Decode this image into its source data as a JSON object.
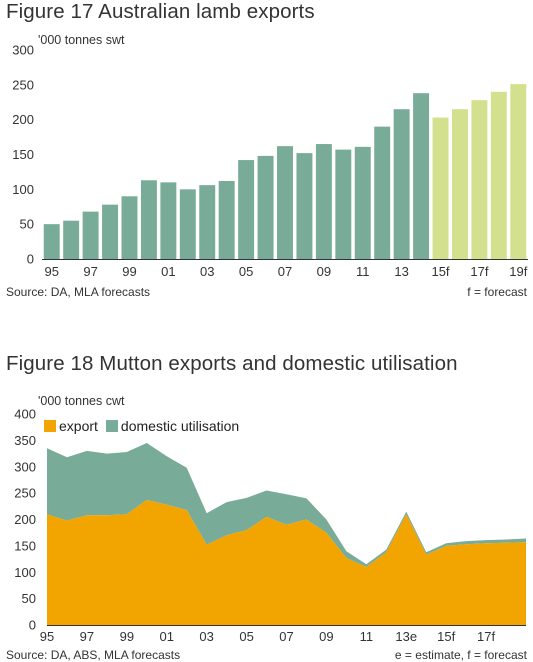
{
  "figures": {
    "fig1": {
      "title": "Figure 17 Australian lamb exports",
      "unit_label": "'000 tonnes swt",
      "source": "Source: DA, MLA forecasts",
      "note": "f = forecast"
    },
    "fig2": {
      "title": "Figure 18 Mutton exports and domestic utilisation",
      "unit_label": "'000 tonnes cwt",
      "source": "Source: DA, ABS, MLA forecasts",
      "note": "e = estimate, f = forecast"
    }
  },
  "chart_data": [
    {
      "type": "bar",
      "title": "Figure 17 Australian lamb exports",
      "ylabel": "'000 tonnes swt",
      "ylim": [
        0,
        300
      ],
      "yticks": [
        0,
        50,
        100,
        150,
        200,
        250,
        300
      ],
      "grid": false,
      "categories": [
        "1995",
        "1996",
        "1997",
        "1998",
        "1999",
        "2000",
        "2001",
        "2002",
        "2003",
        "2004",
        "2005",
        "2006",
        "2007",
        "2008",
        "2009",
        "2010",
        "2011",
        "2012",
        "2013",
        "2014",
        "2015f",
        "2016f",
        "2017f",
        "2018f",
        "2019f"
      ],
      "xtick_labels": [
        "95",
        "",
        "97",
        "",
        "99",
        "",
        "01",
        "",
        "03",
        "",
        "05",
        "",
        "07",
        "",
        "09",
        "",
        "11",
        "",
        "13",
        "",
        "15f",
        "",
        "17f",
        "",
        "19f"
      ],
      "values": [
        50,
        55,
        68,
        78,
        90,
        113,
        110,
        100,
        106,
        112,
        142,
        148,
        162,
        152,
        165,
        157,
        161,
        190,
        215,
        238,
        203,
        215,
        228,
        240,
        251
      ],
      "forecast_from_index": 20,
      "colors": {
        "actual": "#78AB98",
        "forecast": "#D3E08E"
      }
    },
    {
      "type": "area",
      "title": "Figure 18 Mutton exports and domestic utilisation",
      "ylabel": "'000 tonnes cwt",
      "ylim": [
        0,
        400
      ],
      "yticks": [
        0,
        50,
        100,
        150,
        200,
        250,
        300,
        350,
        400
      ],
      "grid": false,
      "stacked": true,
      "legend": "top-left",
      "x": [
        "1995",
        "1996",
        "1997",
        "1998",
        "1999",
        "2000",
        "2001",
        "2002",
        "2003",
        "2004",
        "2005",
        "2006",
        "2007",
        "2008",
        "2009",
        "2010",
        "2011",
        "2012",
        "2013e",
        "2014",
        "2015f",
        "2016f",
        "2017f",
        "2018f",
        "2019f"
      ],
      "xtick_labels": [
        "95",
        "",
        "97",
        "",
        "99",
        "",
        "01",
        "",
        "03",
        "",
        "05",
        "",
        "07",
        "",
        "09",
        "",
        "11",
        "",
        "13e",
        "",
        "15f",
        "",
        "17f",
        "",
        ""
      ],
      "series": [
        {
          "name": "export",
          "color": "#F2A500",
          "values": [
            210,
            198,
            208,
            208,
            210,
            237,
            228,
            218,
            152,
            170,
            180,
            205,
            190,
            200,
            175,
            127,
            110,
            138,
            210,
            133,
            150,
            153,
            155,
            156,
            157
          ]
        },
        {
          "name": "domestic utilisation",
          "color": "#78AB98",
          "values": [
            125,
            120,
            122,
            117,
            118,
            108,
            92,
            80,
            60,
            63,
            61,
            50,
            58,
            40,
            25,
            13,
            5,
            5,
            5,
            5,
            5,
            6,
            6,
            6,
            7
          ]
        }
      ]
    }
  ]
}
